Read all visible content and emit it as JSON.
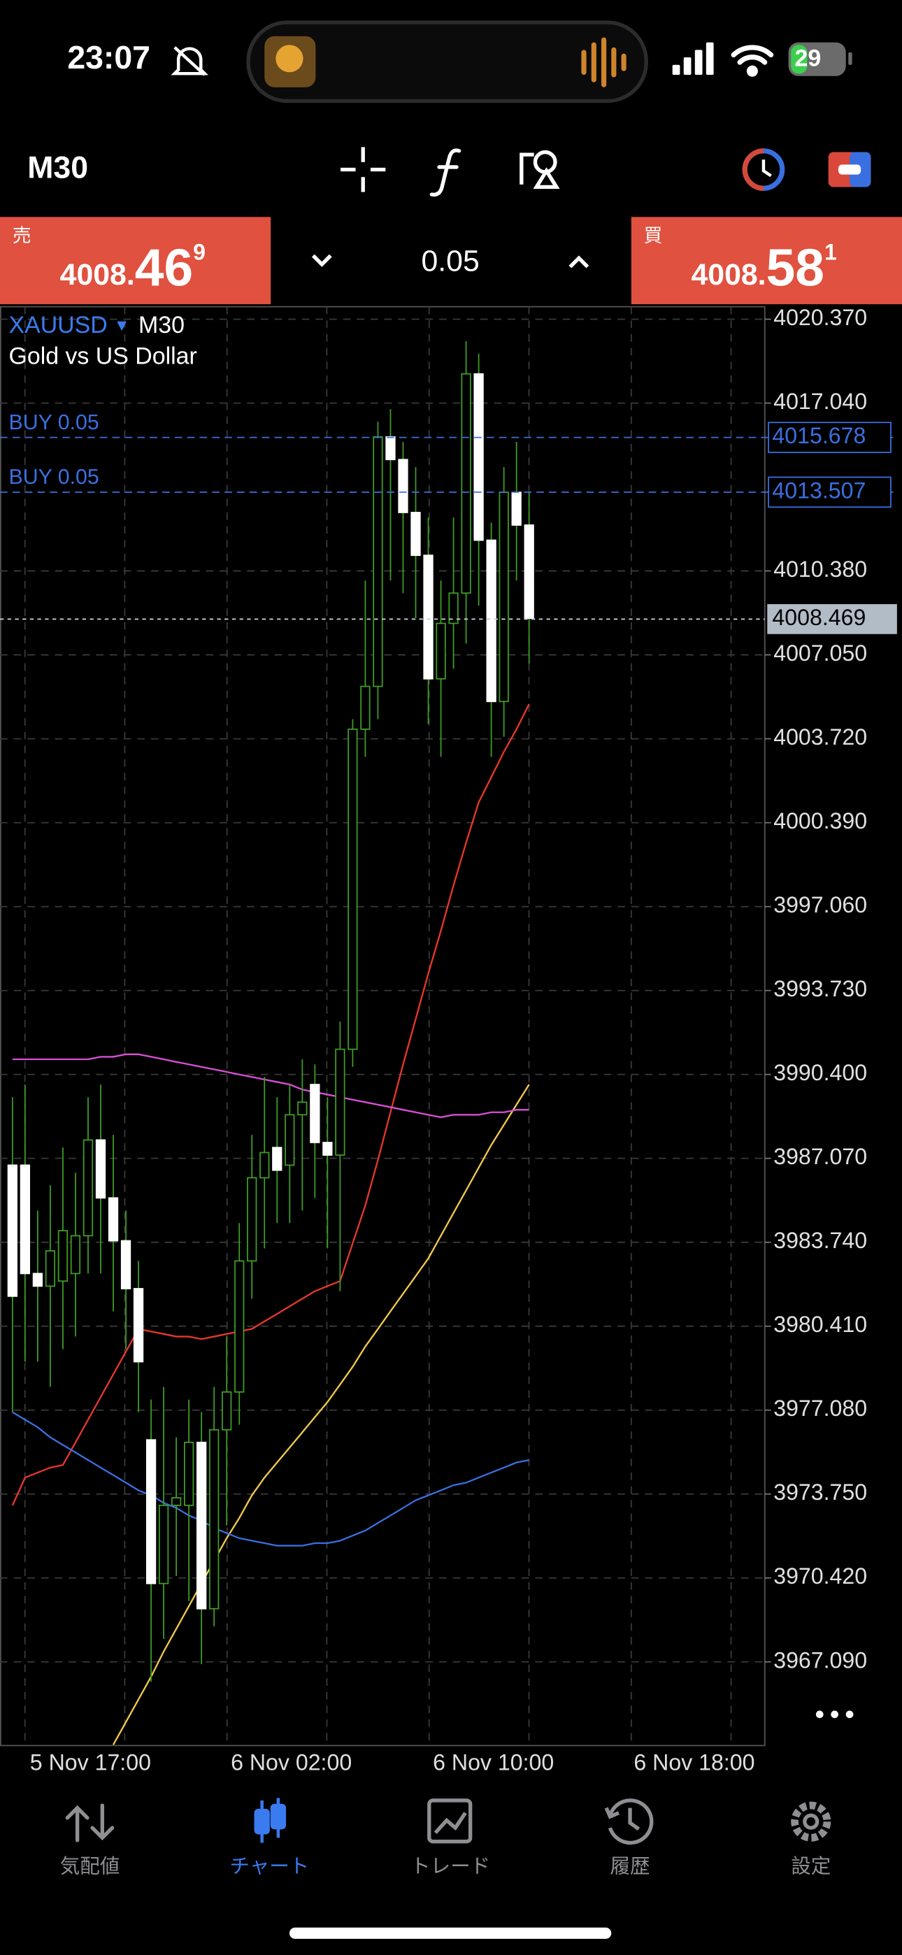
{
  "status_bar": {
    "time": "23:07",
    "battery": "29"
  },
  "toolbar": {
    "timeframe": "M30"
  },
  "trade_panel": {
    "sell_label": "売",
    "sell_price_head": "4008.",
    "sell_price_big": "46",
    "sell_price_sup": "9",
    "volume": "0.05",
    "buy_label": "買",
    "buy_price_head": "4008.",
    "buy_price_big": "58",
    "buy_price_sup": "1"
  },
  "chart_data": {
    "type": "candlestick",
    "symbol": "XAUUSD",
    "timeframe": "M30",
    "description": "Gold vs US Dollar",
    "bull_color": "#3f9c24",
    "bear_color": "#ffffff",
    "open": [
      3986.8,
      3986.8,
      3982.5,
      3982.0,
      3982.2,
      3982.5,
      3984.0,
      3987.8,
      3985.5,
      3983.8,
      3981.9,
      3975.9,
      3970.2,
      3973.3,
      3973.3,
      3975.8,
      3969.2,
      3976.3,
      3977.8,
      3983.0,
      3986.3,
      3987.5,
      3986.8,
      3988.8,
      3990.0,
      3987.7,
      3987.2,
      3991.4,
      4004.1,
      4005.8,
      4015.7,
      4014.8,
      4012.7,
      4011.0,
      4006.1,
      4008.3,
      4009.5,
      4018.2,
      4011.6,
      4005.2,
      4013.5,
      4012.2
    ],
    "high": [
      3989.5,
      3990.0,
      3985.0,
      3986.0,
      3987.5,
      3986.5,
      3989.5,
      3990.0,
      3988.0,
      3985.0,
      3983.0,
      3977.5,
      3978.0,
      3976.0,
      3977.5,
      3977.0,
      3978.0,
      3980.0,
      3984.5,
      3988.0,
      3990.3,
      3989.5,
      3990.0,
      3991.0,
      3990.8,
      3989.5,
      3992.5,
      4004.5,
      4010.0,
      4016.3,
      4016.8,
      4015.5,
      4014.5,
      4012.5,
      4010.0,
      4012.5,
      4019.5,
      4019.0,
      4012.3,
      4014.5,
      4015.5,
      4013.5
    ],
    "low": [
      3977.0,
      3979.0,
      3979.0,
      3978.0,
      3979.5,
      3980.0,
      3982.5,
      3982.5,
      3981.0,
      3979.5,
      3977.0,
      3966.3,
      3968.0,
      3970.5,
      3969.5,
      3967.0,
      3968.5,
      3972.5,
      3976.5,
      3981.5,
      3983.5,
      3984.5,
      3984.5,
      3985.0,
      3985.5,
      3983.5,
      3981.8,
      3990.7,
      4003.0,
      4004.5,
      4010.0,
      4009.5,
      4008.5,
      4004.3,
      4003.0,
      4006.5,
      4007.5,
      4009.0,
      4003.0,
      4003.8,
      4010.0,
      4006.7
    ],
    "close": [
      3981.6,
      3982.5,
      3982.0,
      3983.4,
      3984.2,
      3984.0,
      3987.8,
      3985.5,
      3983.8,
      3981.9,
      3979.0,
      3970.2,
      3973.3,
      3973.6,
      3975.8,
      3969.2,
      3976.3,
      3977.8,
      3983.0,
      3986.3,
      3987.3,
      3986.6,
      3988.8,
      3989.3,
      3987.7,
      3987.2,
      3991.4,
      4004.1,
      4005.8,
      4015.7,
      4014.8,
      4012.7,
      4011.0,
      4006.1,
      4008.3,
      4009.5,
      4018.2,
      4011.6,
      4005.2,
      4013.5,
      4012.2,
      4008.5
    ],
    "series": [
      {
        "color": "#e8372c",
        "values": [
          3973.3,
          3974.4,
          3974.6,
          3974.8,
          3974.9,
          3975.8,
          3976.7,
          3977.6,
          3978.5,
          3979.4,
          3980.3,
          3980.2,
          3980.1,
          3980.0,
          3980.0,
          3979.9,
          3980.0,
          3980.1,
          3980.2,
          3980.3,
          3980.6,
          3980.9,
          3981.2,
          3981.5,
          3981.8,
          3982.0,
          3982.2,
          3983.7,
          3985.2,
          3987.0,
          3988.9,
          3990.8,
          3992.6,
          3994.4,
          3996.1,
          3997.9,
          3999.6,
          4001.2,
          4002.2,
          4003.2,
          4004.1,
          4005.1
        ]
      },
      {
        "color": "#f2c94c",
        "values": [
          null,
          null,
          null,
          null,
          null,
          null,
          null,
          null,
          3963.8,
          3964.7,
          3965.6,
          3966.5,
          3967.5,
          3968.4,
          3969.3,
          3970.2,
          3971.1,
          3972.0,
          3972.8,
          3973.7,
          3974.4,
          3975.0,
          3975.6,
          3976.2,
          3976.8,
          3977.4,
          3978.1,
          3978.8,
          3979.6,
          3980.3,
          3981.0,
          3981.7,
          3982.4,
          3983.1,
          3984.0,
          3984.9,
          3985.8,
          3986.7,
          3987.6,
          3988.4,
          3989.2,
          3990.0
        ]
      },
      {
        "color": "#d94fd6",
        "values": [
          3991.0,
          3991.0,
          3991.0,
          3991.0,
          3991.0,
          3991.0,
          3991.0,
          3991.1,
          3991.1,
          3991.2,
          3991.2,
          3991.1,
          3991.0,
          3990.9,
          3990.8,
          3990.7,
          3990.6,
          3990.5,
          3990.4,
          3990.3,
          3990.2,
          3990.1,
          3990.0,
          3989.8,
          3989.7,
          3989.6,
          3989.5,
          3989.4,
          3989.3,
          3989.2,
          3989.1,
          3989.0,
          3988.9,
          3988.8,
          3988.7,
          3988.8,
          3988.8,
          3988.8,
          3988.9,
          3988.9,
          3989.0,
          3989.0
        ]
      },
      {
        "color": "#3a6fe0",
        "values": [
          3977.0,
          3976.7,
          3976.4,
          3976.0,
          3975.7,
          3975.4,
          3975.1,
          3974.8,
          3974.5,
          3974.2,
          3973.9,
          3973.7,
          3973.4,
          3973.2,
          3972.9,
          3972.7,
          3972.4,
          3972.2,
          3972.0,
          3971.9,
          3971.8,
          3971.7,
          3971.7,
          3971.7,
          3971.8,
          3971.8,
          3971.9,
          3972.1,
          3972.3,
          3972.6,
          3972.9,
          3973.2,
          3973.5,
          3973.7,
          3973.9,
          3974.1,
          3974.2,
          3974.4,
          3974.6,
          3974.8,
          3975.0,
          3975.1
        ]
      }
    ],
    "orders": [
      {
        "label": "BUY 0.05",
        "price": 4015.678,
        "color": "#3a6fe0"
      },
      {
        "label": "BUY 0.05",
        "price": 4013.507,
        "color": "#3a6fe0"
      }
    ],
    "current_price": 4008.469,
    "ylim": [
      3963.77,
      4020.865
    ],
    "yticks": [
      {
        "value": 4020.37,
        "label": "4020.370"
      },
      {
        "value": 4017.04,
        "label": "4017.040"
      },
      {
        "value": 4010.38,
        "label": "4010.380"
      },
      {
        "value": 4007.05,
        "label": "4007.050"
      },
      {
        "value": 4003.72,
        "label": "4003.720"
      },
      {
        "value": 4000.39,
        "label": "4000.390"
      },
      {
        "value": 3997.06,
        "label": "3997.060"
      },
      {
        "value": 3993.73,
        "label": "3993.730"
      },
      {
        "value": 3990.4,
        "label": "3990.400"
      },
      {
        "value": 3987.07,
        "label": "3987.070"
      },
      {
        "value": 3983.74,
        "label": "3983.740"
      },
      {
        "value": 3980.41,
        "label": "3980.410"
      },
      {
        "value": 3977.08,
        "label": "3977.080"
      },
      {
        "value": 3973.75,
        "label": "3973.750"
      },
      {
        "value": 3970.42,
        "label": "3970.420"
      },
      {
        "value": 3967.09,
        "label": "3967.090"
      }
    ],
    "x_labels": [
      "5 Nov 17:00",
      "6 Nov 02:00",
      "6 Nov 10:00",
      "6 Nov 18:00"
    ],
    "grid": true
  },
  "tab_bar": {
    "tabs": [
      "気配値",
      "チャート",
      "トレード",
      "履歴",
      "設定"
    ],
    "active": 1
  }
}
